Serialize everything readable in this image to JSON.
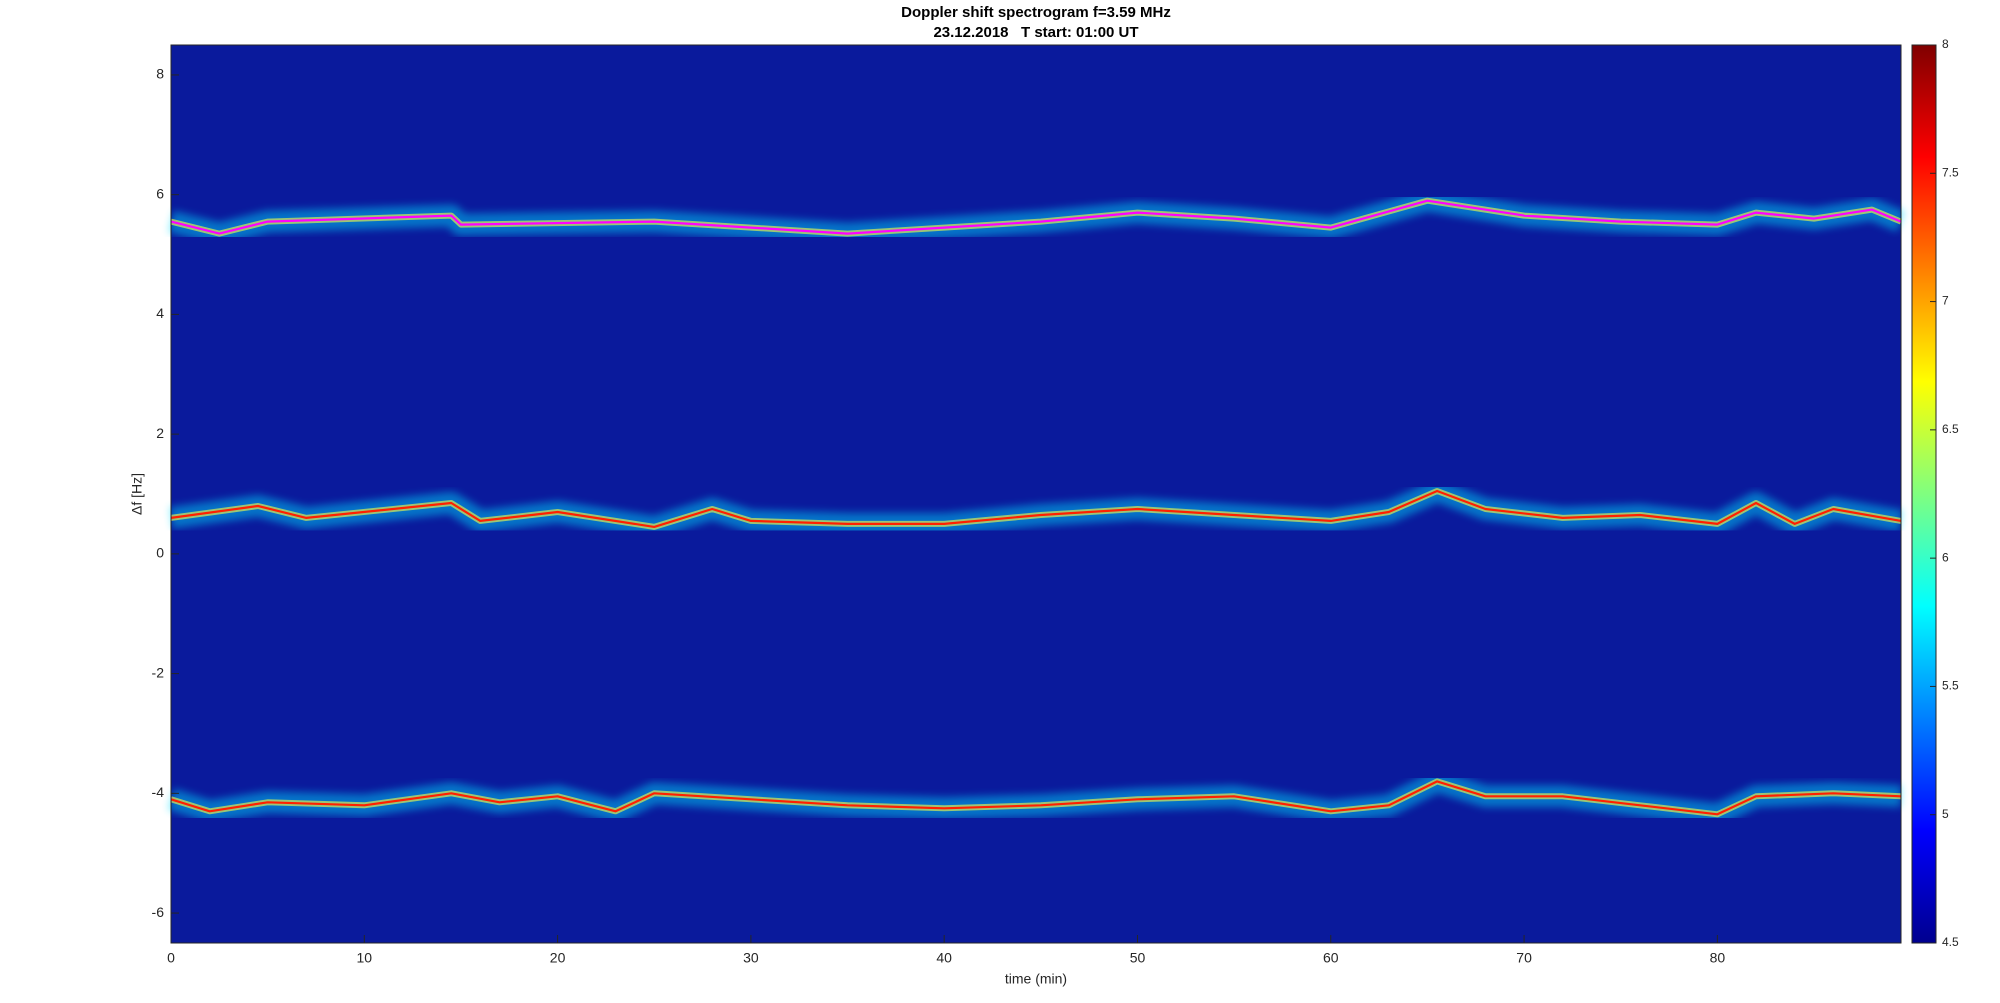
{
  "chart_data": {
    "type": "spectrogram",
    "title": "Doppler shift spectrogram f=3.59 MHz",
    "subtitle": "23.12.2018   T start: 01:00 UT",
    "xlabel": "time (min)",
    "ylabel": "Δf [Hz]",
    "xlim": [
      0,
      89.5
    ],
    "xticks": [
      0,
      10,
      20,
      30,
      40,
      50,
      60,
      70,
      80
    ],
    "ylim": [
      -6.5,
      8.5
    ],
    "yticks": [
      -6,
      -4,
      -2,
      0,
      2,
      4,
      6,
      8
    ],
    "colorbar": {
      "lim": [
        4.5,
        8
      ],
      "ticks": [
        4.5,
        5,
        5.5,
        6,
        6.5,
        7,
        7.5,
        8
      ]
    },
    "series": [
      {
        "color": "#ff00ff",
        "x": [
          0,
          2.5,
          5,
          14.5,
          15,
          25,
          30,
          35,
          40,
          45,
          50,
          55,
          60,
          65,
          70,
          75,
          80,
          82,
          85,
          88,
          89.5
        ],
        "values": [
          5.55,
          5.35,
          5.55,
          5.65,
          5.5,
          5.55,
          5.45,
          5.35,
          5.45,
          5.55,
          5.7,
          5.6,
          5.45,
          5.9,
          5.65,
          5.55,
          5.5,
          5.7,
          5.6,
          5.75,
          5.55
        ]
      },
      {
        "color": "#ff2000",
        "x": [
          0,
          4.5,
          7,
          14.5,
          16,
          20,
          25,
          28,
          30,
          35,
          40,
          45,
          50,
          55,
          60,
          63,
          65.5,
          68,
          72,
          76,
          80,
          82,
          84,
          86,
          89.5
        ],
        "values": [
          0.6,
          0.8,
          0.6,
          0.85,
          0.55,
          0.7,
          0.45,
          0.75,
          0.55,
          0.5,
          0.5,
          0.65,
          0.75,
          0.65,
          0.55,
          0.7,
          1.05,
          0.75,
          0.6,
          0.65,
          0.5,
          0.85,
          0.5,
          0.75,
          0.55
        ]
      },
      {
        "color": "#ff2000",
        "x": [
          0,
          2,
          5,
          10,
          14.5,
          17,
          20,
          23,
          25,
          30,
          35,
          40,
          45,
          50,
          55,
          60,
          63,
          65.5,
          68,
          72,
          76,
          80,
          82,
          86,
          89.5
        ],
        "values": [
          -4.1,
          -4.3,
          -4.15,
          -4.2,
          -4.0,
          -4.15,
          -4.05,
          -4.3,
          -4.0,
          -4.1,
          -4.2,
          -4.25,
          -4.2,
          -4.1,
          -4.05,
          -4.3,
          -4.2,
          -3.8,
          -4.05,
          -4.05,
          -4.2,
          -4.35,
          -4.05,
          -4.0,
          -4.05
        ]
      }
    ]
  }
}
